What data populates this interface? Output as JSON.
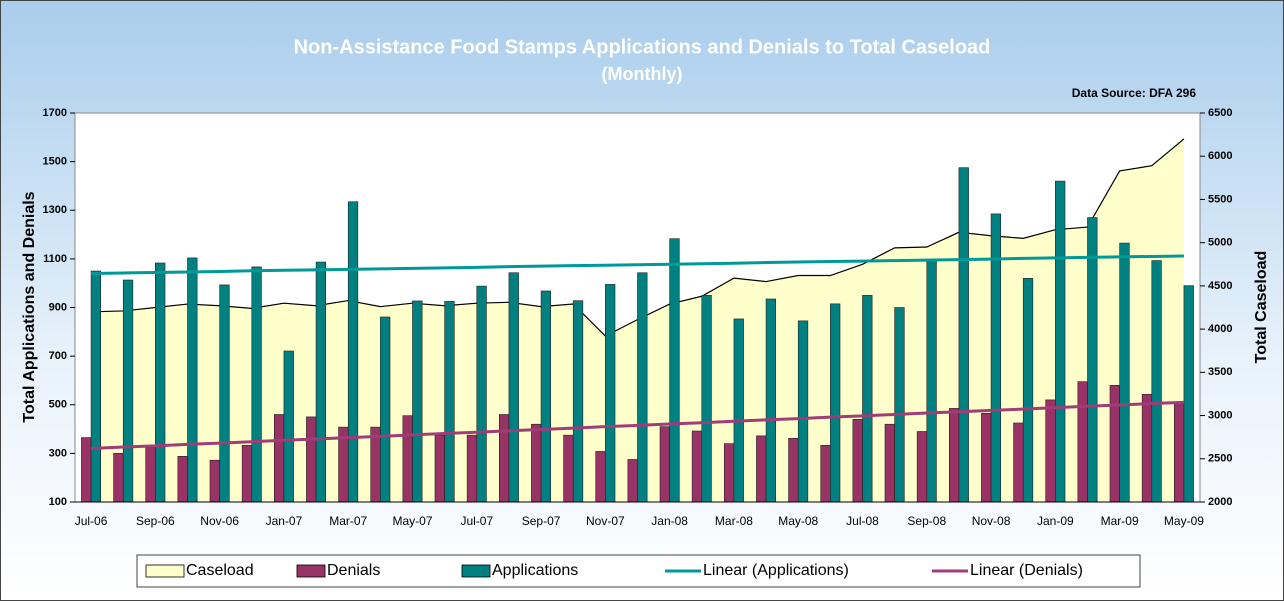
{
  "chart_data": {
    "type": "bar",
    "title": "Non-Assistance Food Stamps Applications and Denials to Total Caseload",
    "subtitle": "(Monthly)",
    "annotation": "Data Source: DFA 296",
    "y_label": "Total Applications and Denials",
    "y2_label": "Total Caseload",
    "categories": [
      "Jul-06",
      null,
      "Sep-06",
      null,
      "Nov-06",
      null,
      "Jan-07",
      null,
      "Mar-07",
      null,
      "May-07",
      null,
      "Jul-07",
      null,
      "Sep-07",
      null,
      "Nov-07",
      null,
      "Jan-08",
      null,
      "Mar-08",
      null,
      "May-08",
      null,
      "Jul-08",
      null,
      "Sep-08",
      null,
      "Nov-08",
      null,
      "Jan-09",
      null,
      "Mar-09",
      null,
      "May-09"
    ],
    "ylim": [
      100,
      1700
    ],
    "yticks": [
      100,
      300,
      500,
      700,
      900,
      1100,
      1300,
      1500,
      1700
    ],
    "y2lim": [
      2000,
      6500
    ],
    "y2ticks": [
      2000,
      2500,
      3000,
      3500,
      4000,
      4500,
      5000,
      5500,
      6000,
      6500
    ],
    "legend": "bottom",
    "series": [
      {
        "name": "Caseload",
        "type": "area",
        "axis": "y2",
        "color": "#ffffcc",
        "values": [
          4200,
          4210,
          4250,
          4290,
          4270,
          4240,
          4300,
          4270,
          4330,
          4260,
          4300,
          4270,
          4300,
          4310,
          4260,
          4290,
          3920,
          4110,
          4290,
          4380,
          4590,
          4550,
          4620,
          4620,
          4750,
          4940,
          4950,
          5120,
          5080,
          5050,
          5150,
          5180,
          5830,
          5890,
          6200
        ]
      },
      {
        "name": "Denials",
        "type": "bar",
        "color": "#993366",
        "values": [
          365,
          300,
          325,
          288,
          272,
          333,
          460,
          450,
          408,
          408,
          455,
          375,
          375,
          460,
          420,
          375,
          308,
          275,
          410,
          392,
          340,
          372,
          362,
          333,
          440,
          420,
          390,
          485,
          465,
          425,
          520,
          595,
          580,
          543,
          505
        ]
      },
      {
        "name": "Applications",
        "type": "bar",
        "color": "#008080",
        "values": [
          1050,
          1013,
          1083,
          1104,
          993,
          1067,
          721,
          1087,
          1335,
          861,
          927,
          925,
          988,
          1043,
          968,
          928,
          995,
          1043,
          1183,
          950,
          853,
          935,
          845,
          915,
          950,
          900,
          1093,
          1475,
          1285,
          1020,
          1420,
          1270,
          1165,
          1093,
          990
        ]
      },
      {
        "name": "Linear (Applications)",
        "type": "line",
        "color": "#009999",
        "values": [
          1040,
          1042,
          1044,
          1046,
          1048,
          1051,
          1053,
          1055,
          1057,
          1059,
          1061,
          1063,
          1065,
          1068,
          1070,
          1072,
          1074,
          1076,
          1078,
          1080,
          1082,
          1085,
          1087,
          1089,
          1091,
          1093,
          1095,
          1097,
          1099,
          1102,
          1104,
          1106,
          1108,
          1110,
          1112
        ]
      },
      {
        "name": "Linear (Denials)",
        "type": "line",
        "color": "#a03c78",
        "values": [
          320,
          326,
          331,
          337,
          342,
          348,
          354,
          359,
          365,
          370,
          376,
          382,
          387,
          393,
          398,
          404,
          410,
          415,
          421,
          426,
          432,
          438,
          443,
          449,
          454,
          460,
          466,
          471,
          477,
          482,
          488,
          494,
          499,
          505,
          510
        ]
      }
    ]
  }
}
